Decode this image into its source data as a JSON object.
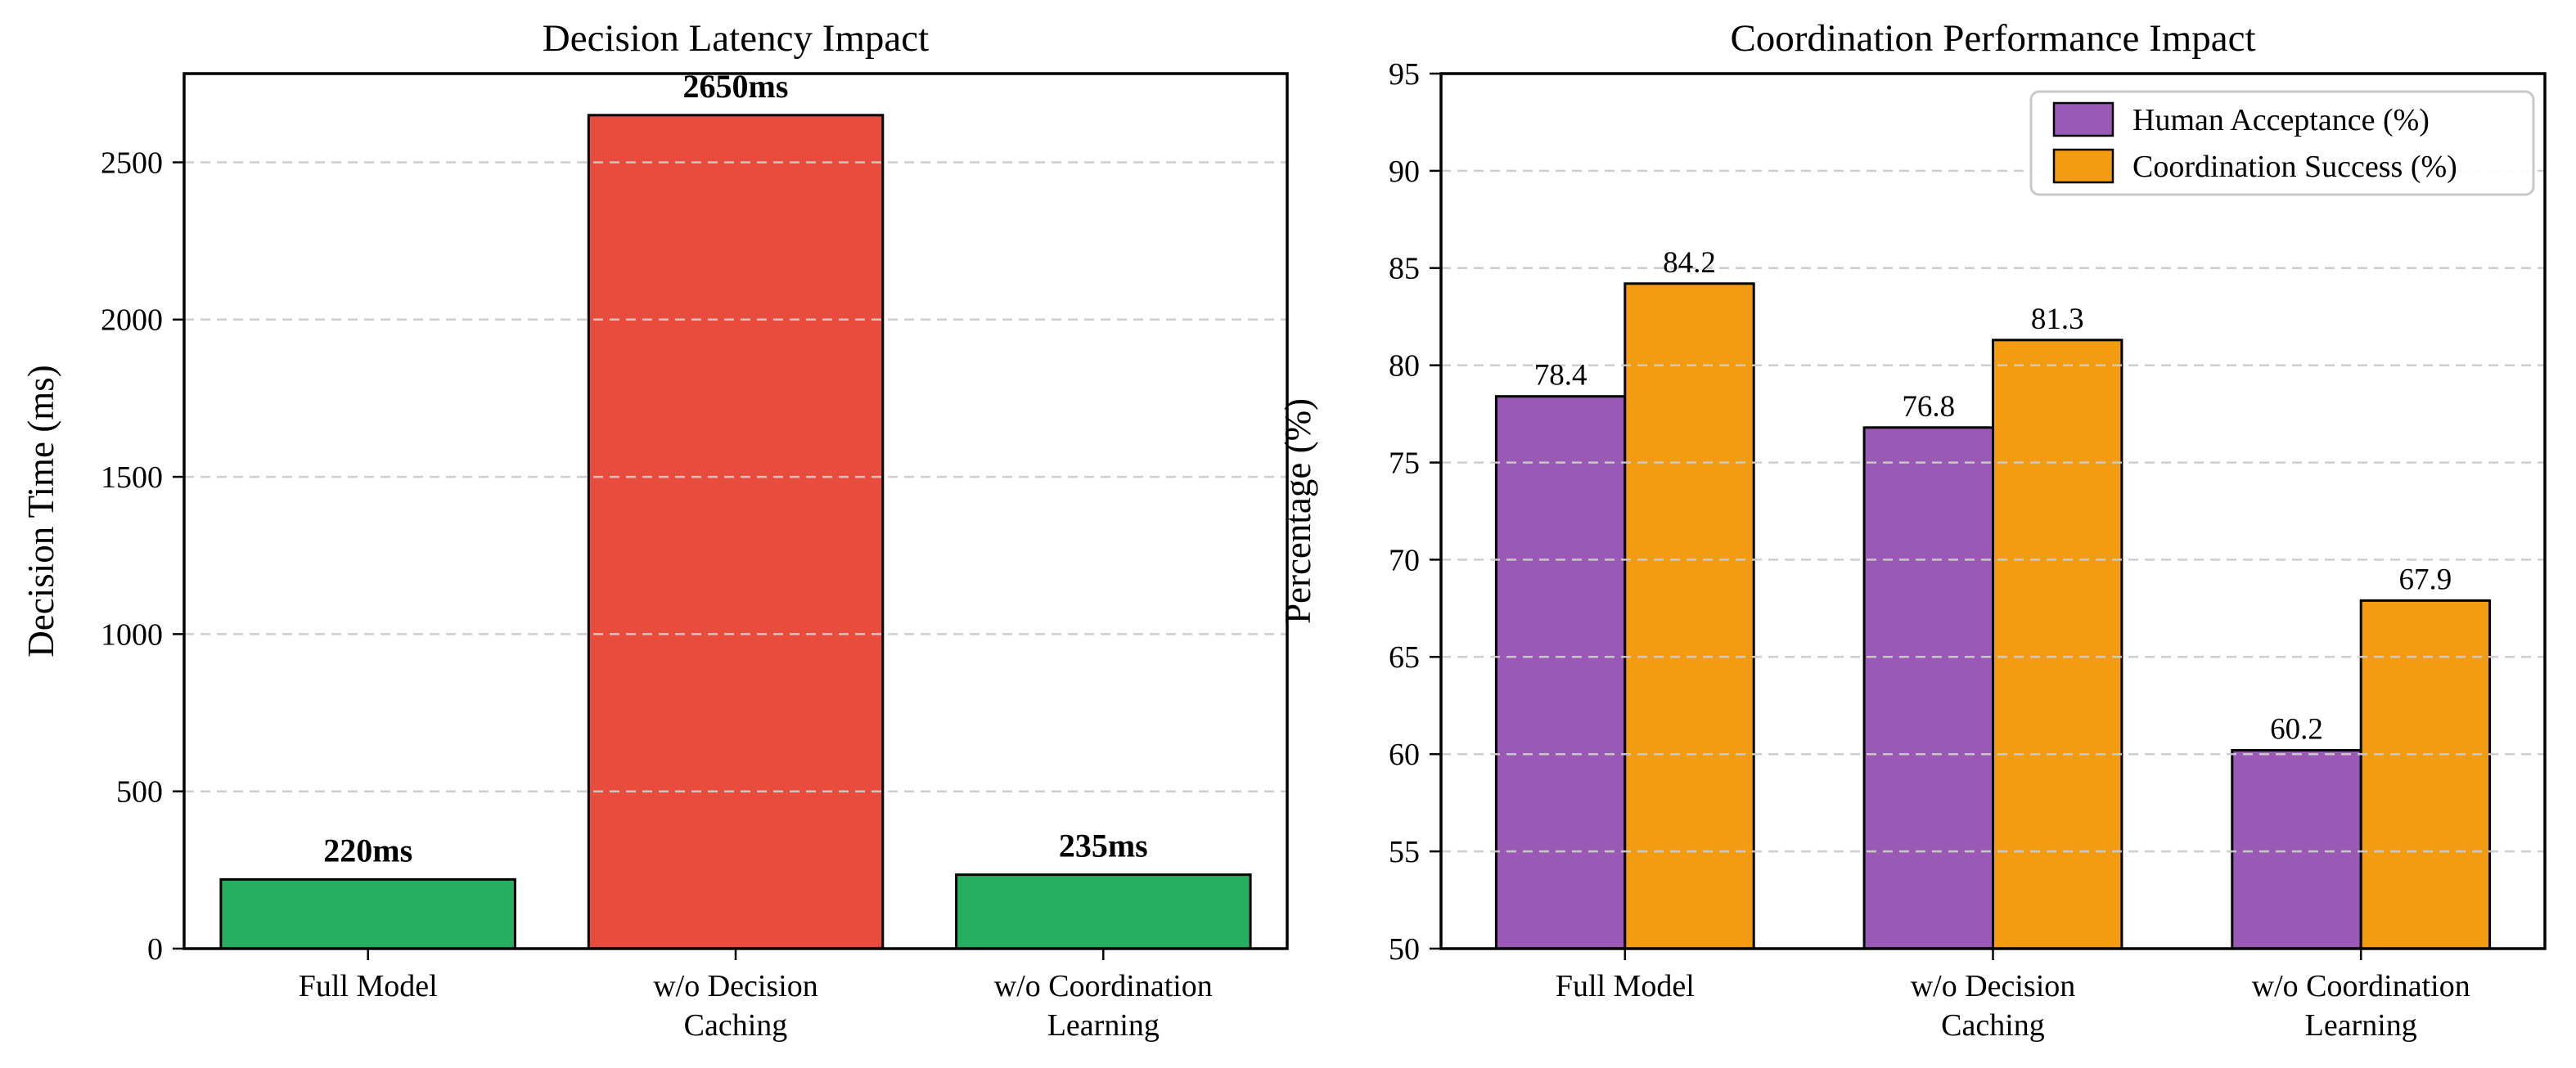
{
  "figure": {
    "background": "#ffffff",
    "text_color": "#000000",
    "edge_color": "#000000",
    "grid_color": "#cccccc",
    "legend_border_color": "#c8c8c8"
  },
  "chart_data": [
    {
      "type": "bar",
      "name": "decision-latency-chart",
      "title": "Decision Latency Impact",
      "xlabel": "",
      "ylabel": "Decision Time (ms)",
      "categories": [
        "Full Model",
        "w/o Decision\nCaching",
        "w/o Coordination\nLearning"
      ],
      "values": [
        220,
        2650,
        235
      ],
      "value_labels": [
        "220ms",
        "2650ms",
        "235ms"
      ],
      "value_labels_bold": true,
      "bar_colors": [
        "#27ae60",
        "#e74c3c",
        "#27ae60"
      ],
      "bar_width": 0.8,
      "ylim": [
        0,
        2782
      ],
      "yticks": [
        0,
        500,
        1000,
        1500,
        2000,
        2500
      ],
      "grid": true,
      "grid_style": "dashed",
      "legend": null
    },
    {
      "type": "bar",
      "name": "coordination-performance-chart",
      "title": "Coordination Performance Impact",
      "xlabel": "",
      "ylabel": "Percentage (%)",
      "categories": [
        "Full Model",
        "w/o Decision\nCaching",
        "w/o Coordination\nLearning"
      ],
      "series": [
        {
          "name": "Human Acceptance (%)",
          "color": "#9b59b6",
          "values": [
            78.4,
            76.8,
            60.2
          ],
          "value_labels": [
            "78.4",
            "76.8",
            "60.2"
          ]
        },
        {
          "name": "Coordination Success (%)",
          "color": "#f39c12",
          "values": [
            84.2,
            81.3,
            67.9
          ],
          "value_labels": [
            "84.2",
            "81.3",
            "67.9"
          ]
        }
      ],
      "value_labels_bold": false,
      "bar_width": 0.35,
      "ylim": [
        50,
        95
      ],
      "yticks": [
        50,
        55,
        60,
        65,
        70,
        75,
        80,
        85,
        90,
        95
      ],
      "grid": true,
      "grid_style": "dashed",
      "legend_position": "upper right"
    }
  ]
}
